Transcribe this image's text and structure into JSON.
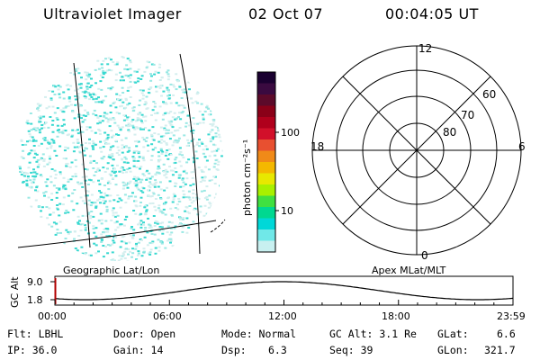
{
  "header": {
    "instrument": "Ultraviolet Imager",
    "date": "02 Oct 07",
    "time": "00:04:05 UT"
  },
  "colorbar": {
    "unit_label": "photon cm⁻²s⁻¹",
    "ticks": [
      "100",
      "10"
    ],
    "tick_values": [
      100,
      10
    ],
    "colors": [
      "#1a0030",
      "#3a0a40",
      "#5c0a2a",
      "#8a0018",
      "#b0001c",
      "#d2102a",
      "#e85030",
      "#f08a18",
      "#f4b800",
      "#e8e800",
      "#a8f000",
      "#40e040",
      "#00d890",
      "#00d8d8",
      "#70e8e8",
      "#c8f0f0"
    ]
  },
  "map_labels": {
    "geographic": "Geographic Lat/Lon",
    "apex": "Apex MLat/MLT"
  },
  "polar": {
    "mlt_top": "12",
    "mlt_bottom": "0",
    "mlt_left": "18",
    "mlt_right": "6",
    "lat_labels": [
      "60",
      "70",
      "80"
    ]
  },
  "altitude_plot": {
    "ylabel": "GC Alt",
    "yticks": [
      "9.0",
      "1.8"
    ],
    "y_values": [
      9.0,
      1.8
    ],
    "xticks": [
      "00:00",
      "06:00",
      "12:00",
      "18:00",
      "23:59"
    ]
  },
  "info": {
    "row1": {
      "filter": "Flt: LBHL",
      "door": "Door: Open",
      "mode": "Mode: Normal",
      "gc_alt": "GC Alt: 3.1 Re",
      "glat_label": "GLat:",
      "glat_value": "6.6"
    },
    "row2": {
      "ip": "IP: 36.0",
      "gain": "Gain: 14",
      "dsp_label": "Dsp:",
      "dsp_value": "6.3",
      "seq": "Seq: 39",
      "glon_label": "GLon:",
      "glon_value": "321.7"
    }
  }
}
